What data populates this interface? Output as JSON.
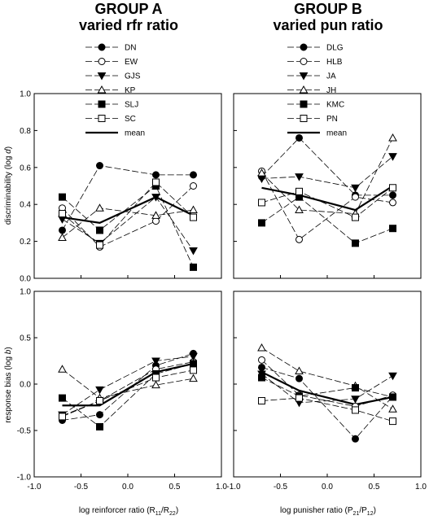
{
  "figure": {
    "group_a_title": "GROUP A",
    "group_a_subtitle": "varied rfr ratio",
    "group_b_title": "GROUP B",
    "group_b_subtitle": "varied pun ratio"
  },
  "colors": {
    "line": "#000000",
    "axis": "#000000",
    "background": "#ffffff"
  },
  "chart_data": [
    {
      "id": "A-disc",
      "type": "line",
      "panel": "top-left",
      "ylabel": "discriminability (log d)",
      "xlabel": "",
      "xlim": [
        -1.0,
        1.0
      ],
      "ylim": [
        0.0,
        1.0
      ],
      "x": [
        -0.7,
        -0.3,
        0.3,
        0.7
      ],
      "legend_position": "top",
      "series": [
        {
          "name": "DN",
          "marker": "circle-filled",
          "values": [
            0.26,
            0.61,
            0.56,
            0.56
          ]
        },
        {
          "name": "EW",
          "marker": "circle-open",
          "values": [
            0.38,
            0.17,
            0.31,
            0.5
          ]
        },
        {
          "name": "GJS",
          "marker": "triangle-down-filled",
          "values": [
            0.32,
            0.19,
            0.44,
            0.15
          ]
        },
        {
          "name": "KP",
          "marker": "triangle-up-open",
          "values": [
            0.22,
            0.38,
            0.34,
            0.37
          ]
        },
        {
          "name": "SLJ",
          "marker": "square-filled",
          "values": [
            0.44,
            0.26,
            0.5,
            0.06
          ]
        },
        {
          "name": "SC",
          "marker": "square-open",
          "values": [
            0.35,
            0.18,
            0.52,
            0.33
          ]
        },
        {
          "name": "mean",
          "marker": "none",
          "values": [
            0.33,
            0.3,
            0.44,
            0.34
          ]
        }
      ]
    },
    {
      "id": "B-disc",
      "type": "line",
      "panel": "top-right",
      "ylabel": "",
      "xlabel": "",
      "xlim": [
        -1.0,
        1.0
      ],
      "ylim": [
        0.0,
        1.0
      ],
      "x": [
        -0.7,
        -0.3,
        0.3,
        0.7
      ],
      "legend_position": "top",
      "series": [
        {
          "name": "DLG",
          "marker": "circle-filled",
          "values": [
            0.55,
            0.76,
            0.45,
            0.45
          ]
        },
        {
          "name": "HLB",
          "marker": "circle-open",
          "values": [
            0.58,
            0.21,
            0.44,
            0.41
          ]
        },
        {
          "name": "JA",
          "marker": "triangle-down-filled",
          "values": [
            0.54,
            0.55,
            0.49,
            0.66
          ]
        },
        {
          "name": "JH",
          "marker": "triangle-up-open",
          "values": [
            0.57,
            0.37,
            0.35,
            0.76
          ]
        },
        {
          "name": "KMC",
          "marker": "square-filled",
          "values": [
            0.3,
            0.44,
            0.19,
            0.27
          ]
        },
        {
          "name": "PN",
          "marker": "square-open",
          "values": [
            0.41,
            0.47,
            0.33,
            0.49
          ]
        },
        {
          "name": "mean",
          "marker": "none",
          "values": [
            0.49,
            0.45,
            0.37,
            0.5
          ]
        }
      ]
    },
    {
      "id": "A-bias",
      "type": "line",
      "panel": "bottom-left",
      "ylabel": "response bias (log b)",
      "xlabel": "log reinforcer ratio (R11/R22)",
      "xlim": [
        -1.0,
        1.0
      ],
      "ylim": [
        -1.0,
        1.0
      ],
      "x": [
        -0.7,
        -0.3,
        0.3,
        0.7
      ],
      "series": [
        {
          "name": "DN",
          "marker": "circle-filled",
          "values": [
            -0.39,
            -0.33,
            0.2,
            0.33
          ]
        },
        {
          "name": "EW",
          "marker": "circle-open",
          "values": [
            -0.34,
            -0.18,
            0.16,
            0.24
          ]
        },
        {
          "name": "GJS",
          "marker": "triangle-down-filled",
          "values": [
            -0.33,
            -0.06,
            0.25,
            0.3
          ]
        },
        {
          "name": "KP",
          "marker": "triangle-up-open",
          "values": [
            0.16,
            -0.15,
            -0.01,
            0.06
          ]
        },
        {
          "name": "SLJ",
          "marker": "square-filled",
          "values": [
            -0.15,
            -0.46,
            0.11,
            0.22
          ]
        },
        {
          "name": "SC",
          "marker": "square-open",
          "values": [
            -0.35,
            -0.18,
            0.07,
            0.15
          ]
        },
        {
          "name": "mean",
          "marker": "none",
          "values": [
            -0.23,
            -0.23,
            0.13,
            0.22
          ]
        }
      ]
    },
    {
      "id": "B-bias",
      "type": "line",
      "panel": "bottom-right",
      "ylabel": "",
      "xlabel": "log punisher ratio (P21/P12)",
      "xlim": [
        -1.0,
        1.0
      ],
      "ylim": [
        -1.0,
        1.0
      ],
      "x": [
        -0.7,
        -0.3,
        0.3,
        0.7
      ],
      "series": [
        {
          "name": "DLG",
          "marker": "circle-filled",
          "values": [
            0.18,
            0.06,
            -0.59,
            -0.13
          ]
        },
        {
          "name": "HLB",
          "marker": "circle-open",
          "values": [
            0.26,
            -0.12,
            -0.24,
            -0.12
          ]
        },
        {
          "name": "JA",
          "marker": "triangle-down-filled",
          "values": [
            0.11,
            -0.2,
            -0.16,
            0.09
          ]
        },
        {
          "name": "JH",
          "marker": "triangle-up-open",
          "values": [
            0.39,
            0.14,
            -0.02,
            -0.27
          ]
        },
        {
          "name": "KMC",
          "marker": "square-filled",
          "values": [
            0.07,
            -0.13,
            -0.04,
            -0.14
          ]
        },
        {
          "name": "PN",
          "marker": "square-open",
          "values": [
            -0.18,
            -0.15,
            -0.28,
            -0.4
          ]
        },
        {
          "name": "mean",
          "marker": "none",
          "values": [
            0.13,
            -0.07,
            -0.22,
            -0.14
          ]
        }
      ]
    }
  ],
  "ticks": {
    "x": [
      "-1.0",
      "-0.5",
      "0.0",
      "0.5",
      "1.0"
    ],
    "x_right_first": "-1.0",
    "y_top": [
      "0.0",
      "0.2",
      "0.4",
      "0.6",
      "0.8",
      "1.0"
    ],
    "y_bottom": [
      "-1.0",
      "-0.5",
      "0.0",
      "0.5",
      "1.0"
    ]
  },
  "axis_labels": {
    "y_top_main": "discriminability (log ",
    "y_top_italic": "d",
    "y_top_end": ")",
    "y_bottom_main": "response bias (log ",
    "y_bottom_italic": "b",
    "y_bottom_end": ")",
    "x_left_main": "log reinforcer ratio (R",
    "x_left_sub1": "11",
    "x_left_mid": "/R",
    "x_left_sub2": "22",
    "x_left_end": ")",
    "x_right_main": "log punisher ratio (P",
    "x_right_sub1": "21",
    "x_right_mid": "/P",
    "x_right_sub2": "12",
    "x_right_end": ")"
  }
}
